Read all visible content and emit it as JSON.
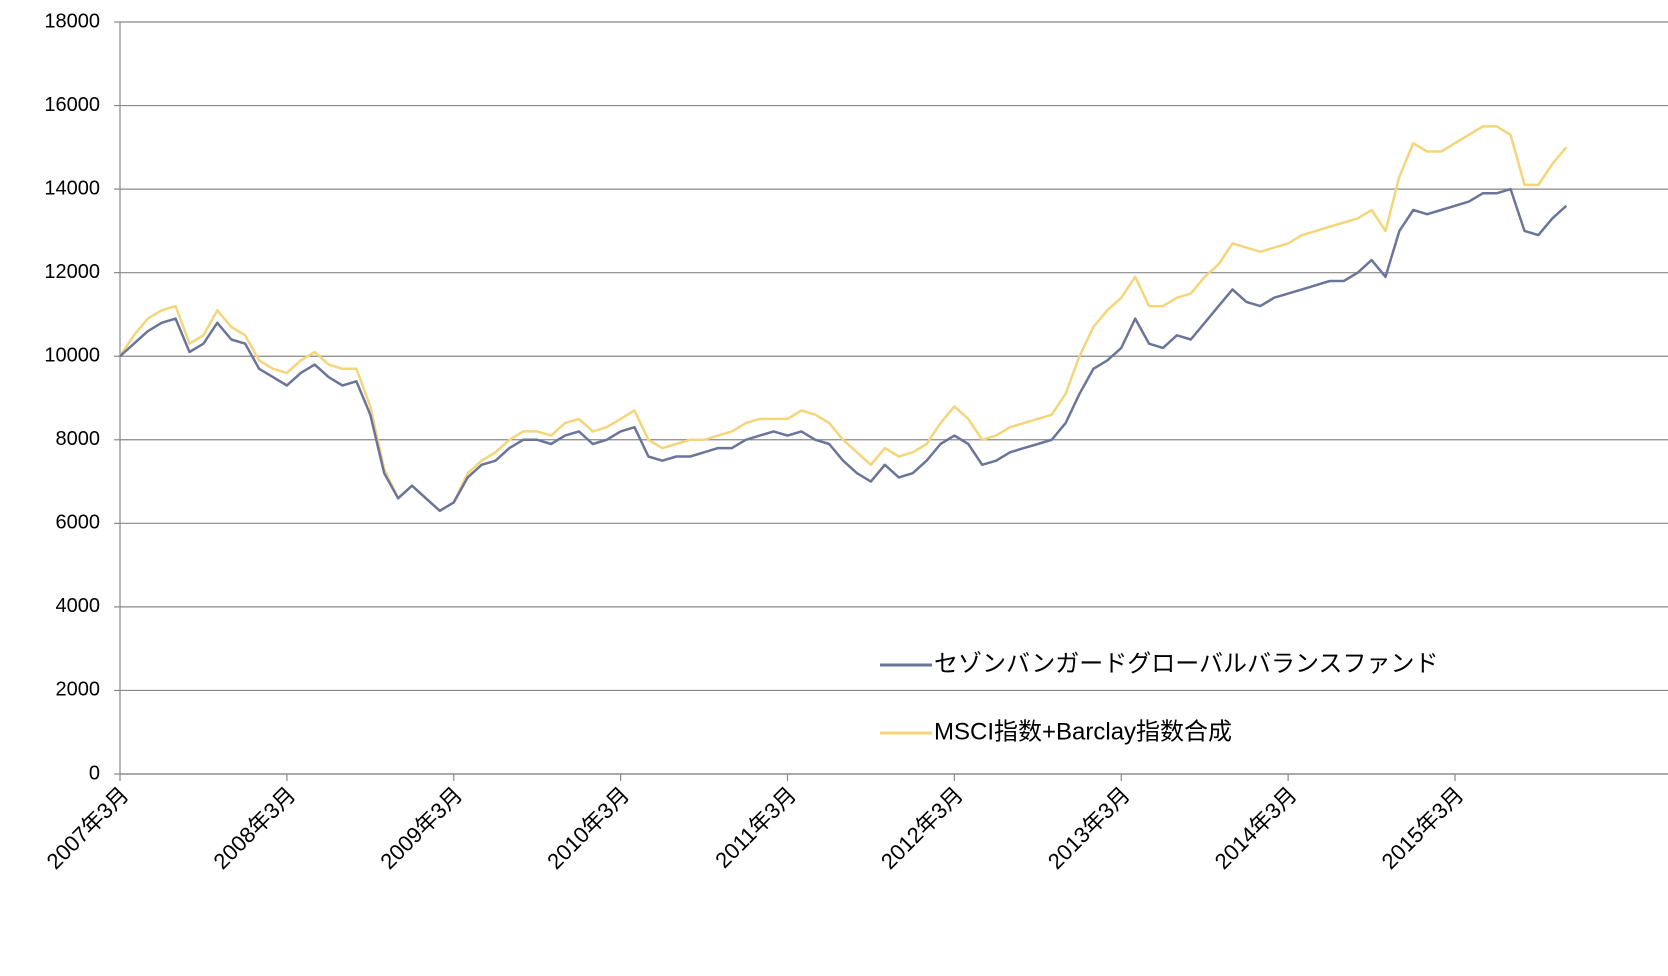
{
  "chart_data": {
    "type": "line",
    "categories": [
      "2007年3月",
      null,
      null,
      null,
      null,
      null,
      null,
      null,
      null,
      null,
      null,
      null,
      "2008年3月",
      null,
      null,
      null,
      null,
      null,
      null,
      null,
      null,
      null,
      null,
      null,
      "2009年3月",
      null,
      null,
      null,
      null,
      null,
      null,
      null,
      null,
      null,
      null,
      null,
      "2010年3月",
      null,
      null,
      null,
      null,
      null,
      null,
      null,
      null,
      null,
      null,
      null,
      "2011年3月",
      null,
      null,
      null,
      null,
      null,
      null,
      null,
      null,
      null,
      null,
      null,
      "2012年3月",
      null,
      null,
      null,
      null,
      null,
      null,
      null,
      null,
      null,
      null,
      null,
      "2013年3月",
      null,
      null,
      null,
      null,
      null,
      null,
      null,
      null,
      null,
      null,
      null,
      "2014年3月",
      null,
      null,
      null,
      null,
      null,
      null,
      null,
      null,
      null,
      null,
      null,
      "2015年3月",
      null,
      null,
      null,
      null,
      null,
      null,
      null,
      null
    ],
    "series": [
      {
        "name": "セゾンバンガードグローバルバランスファンド",
        "color": "#6a7599",
        "values": [
          10000,
          10300,
          10600,
          10800,
          10900,
          10100,
          10300,
          10800,
          10400,
          10300,
          9700,
          9500,
          9300,
          9600,
          9800,
          9500,
          9300,
          9400,
          8600,
          7200,
          6600,
          6900,
          6600,
          6300,
          6500,
          7100,
          7400,
          7500,
          7800,
          8000,
          8000,
          7900,
          8100,
          8200,
          7900,
          8000,
          8200,
          8300,
          7600,
          7500,
          7600,
          7600,
          7700,
          7800,
          7800,
          8000,
          8100,
          8200,
          8100,
          8200,
          8000,
          7900,
          7500,
          7200,
          7000,
          7400,
          7100,
          7200,
          7500,
          7900,
          8100,
          7900,
          7400,
          7500,
          7700,
          7800,
          7900,
          8000,
          8400,
          9100,
          9700,
          9900,
          10200,
          10900,
          10300,
          10200,
          10500,
          10400,
          10800,
          11200,
          11600,
          11300,
          11200,
          11400,
          11500,
          11600,
          11700,
          11800,
          11800,
          12000,
          12300,
          11900,
          13000,
          13500,
          13400,
          13500,
          13600,
          13700,
          13900,
          13900,
          14000,
          13000,
          12900,
          13300,
          13600
        ]
      },
      {
        "name": "MSCI指数+Barclay指数合成",
        "color": "#f5d57a",
        "values": [
          10000,
          10500,
          10900,
          11100,
          11200,
          10300,
          10500,
          11100,
          10700,
          10500,
          9900,
          9700,
          9600,
          9900,
          10100,
          9800,
          9700,
          9700,
          8800,
          7300,
          6600,
          6900,
          6600,
          6300,
          6500,
          7200,
          7500,
          7700,
          8000,
          8200,
          8200,
          8100,
          8400,
          8500,
          8200,
          8300,
          8500,
          8700,
          8000,
          7800,
          7900,
          8000,
          8000,
          8100,
          8200,
          8400,
          8500,
          8500,
          8500,
          8700,
          8600,
          8400,
          8000,
          7700,
          7400,
          7800,
          7600,
          7700,
          7900,
          8400,
          8800,
          8500,
          8000,
          8100,
          8300,
          8400,
          8500,
          8600,
          9100,
          10000,
          10700,
          11100,
          11400,
          11900,
          11200,
          11200,
          11400,
          11500,
          11900,
          12200,
          12700,
          12600,
          12500,
          12600,
          12700,
          12900,
          13000,
          13100,
          13200,
          13300,
          13500,
          13000,
          14300,
          15100,
          14900,
          14900,
          15100,
          15300,
          15500,
          15500,
          15300,
          14100,
          14100,
          14600,
          15000
        ]
      }
    ],
    "ylim": [
      0,
      18000
    ],
    "yticks": [
      0,
      2000,
      4000,
      6000,
      8000,
      10000,
      12000,
      14000,
      16000,
      18000
    ],
    "grid": true,
    "legend": "lower right"
  }
}
